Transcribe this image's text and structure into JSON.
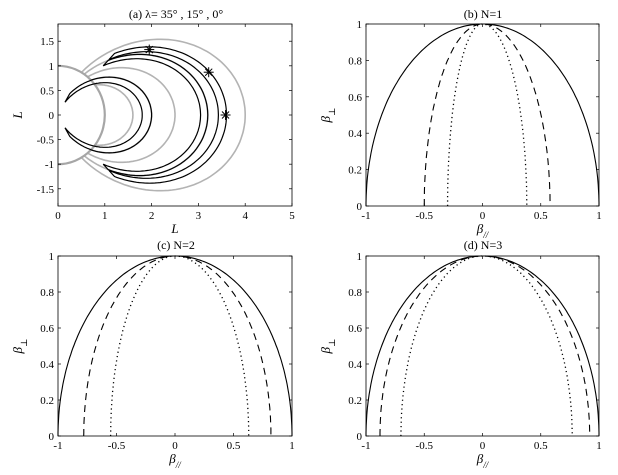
{
  "chart_data": [
    {
      "id": "a",
      "type": "line",
      "title": "(a) λ= 35° , 15° , 0°",
      "xlabel": "L",
      "ylabel": "L",
      "xlim": [
        0,
        5
      ],
      "ylim": [
        -1.85,
        1.85
      ],
      "xticks": [
        0,
        1,
        2,
        3,
        4,
        5
      ],
      "yticks": [
        -1.5,
        -1,
        -0.5,
        0,
        0.5,
        1,
        1.5
      ],
      "earth_radius": 1,
      "dipole_field_lines_L": [
        1.6,
        2.0,
        2.5,
        3.2,
        4.0
      ],
      "trajectories": [
        {
          "L": 2.0,
          "lambda_max_deg": 60
        },
        {
          "L": 3.2,
          "lambda_max_deg": 46,
          "offset": 0.12
        },
        {
          "L": 3.6,
          "lambda_max_deg": 46,
          "offset": 0.12
        }
      ],
      "stars": [
        {
          "x": 1.95,
          "y": 1.33
        },
        {
          "x": 3.22,
          "y": 0.87
        },
        {
          "x": 3.58,
          "y": 0.0
        }
      ],
      "colors": {
        "field_lines": "#b3b3b3",
        "earth": "#a6a6a6",
        "trajectories": "#000000"
      }
    },
    {
      "id": "b",
      "type": "line",
      "title": "(b) N=1",
      "xlabel": "β//",
      "ylabel": "β⊥",
      "xlim": [
        -1,
        1
      ],
      "ylim": [
        0,
        1
      ],
      "xticks": [
        -1,
        -0.5,
        0,
        0.5,
        1
      ],
      "yticks": [
        0,
        0.2,
        0.4,
        0.6,
        0.8,
        1
      ],
      "series": [
        {
          "style": "solid",
          "a_left": 1.0,
          "a_right": 1.0
        },
        {
          "style": "dashed",
          "a_left": 0.5,
          "a_right": 0.58
        },
        {
          "style": "dotted",
          "a_left": 0.3,
          "a_right": 0.38
        }
      ]
    },
    {
      "id": "c",
      "type": "line",
      "title": "(c) N=2",
      "xlabel": "β//",
      "ylabel": "β⊥",
      "xlim": [
        -1,
        1
      ],
      "ylim": [
        0,
        1
      ],
      "xticks": [
        -1,
        -0.5,
        0,
        0.5,
        1
      ],
      "yticks": [
        0,
        0.2,
        0.4,
        0.6,
        0.8,
        1
      ],
      "series": [
        {
          "style": "solid",
          "a_left": 1.0,
          "a_right": 1.0
        },
        {
          "style": "dashed",
          "a_left": 0.78,
          "a_right": 0.82
        },
        {
          "style": "dotted",
          "a_left": 0.55,
          "a_right": 0.63
        }
      ]
    },
    {
      "id": "d",
      "type": "line",
      "title": "(d) N=3",
      "xlabel": "β//",
      "ylabel": "β⊥",
      "xlim": [
        -1,
        1
      ],
      "ylim": [
        0,
        1
      ],
      "xticks": [
        -1,
        -0.5,
        0,
        0.5,
        1
      ],
      "yticks": [
        0,
        0.2,
        0.4,
        0.6,
        0.8,
        1
      ],
      "series": [
        {
          "style": "solid",
          "a_left": 1.0,
          "a_right": 1.0
        },
        {
          "style": "dashed",
          "a_left": 0.88,
          "a_right": 0.92
        },
        {
          "style": "dotted",
          "a_left": 0.7,
          "a_right": 0.77
        }
      ]
    }
  ]
}
